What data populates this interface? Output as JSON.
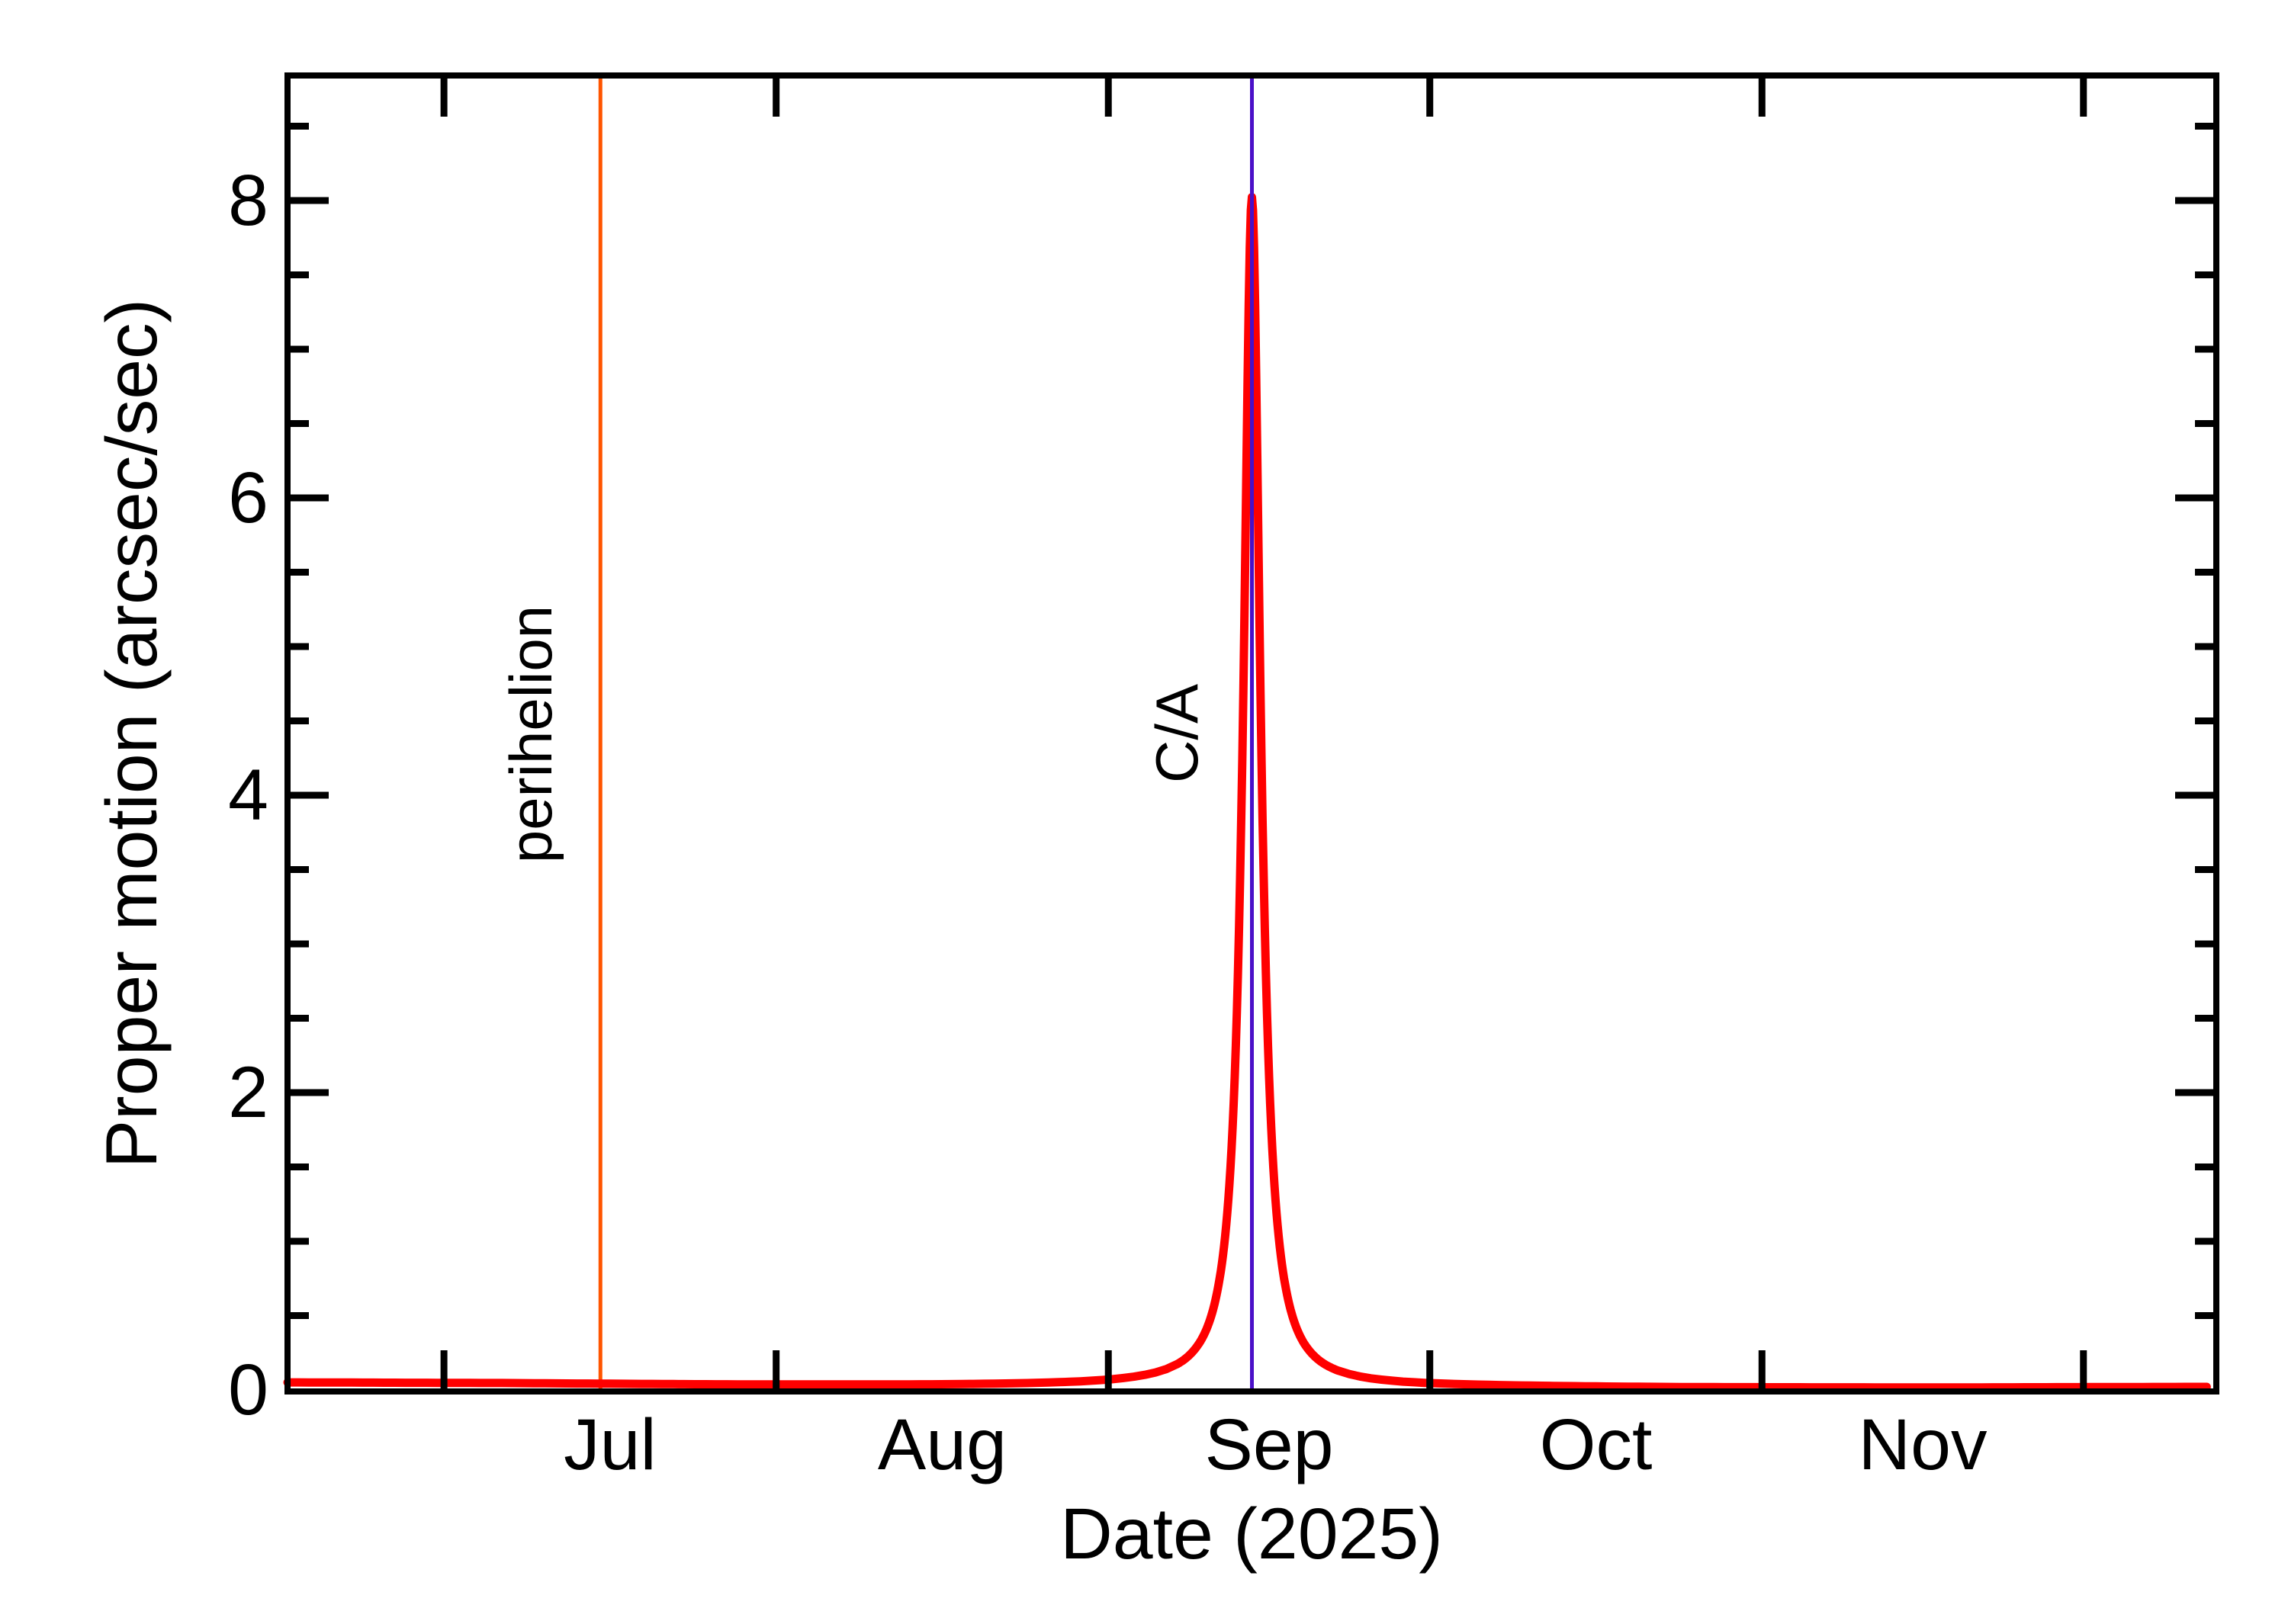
{
  "chart_data": {
    "type": "line",
    "title": "",
    "xlabel": "Date (2025)",
    "ylabel": "Proper motion (arcsec/sec)",
    "x_axis": {
      "year": "2025",
      "start_date": "2025-06-16",
      "end_date": "2025-12-13",
      "span_days": 180,
      "grid": false,
      "month_boundaary_note": "ticks drawn at month starts on top and bottom edges",
      "boundaries": [
        {
          "date": "Jul 1",
          "day": 14.6
        },
        {
          "date": "Aug 1",
          "day": 45.6
        },
        {
          "date": "Sep 1",
          "day": 76.6
        },
        {
          "date": "Oct 1",
          "day": 106.6
        },
        {
          "date": "Nov 1",
          "day": 137.6
        },
        {
          "date": "Dec 1",
          "day": 167.6
        }
      ],
      "labels": [
        {
          "text": "Jul",
          "day": 30.1
        },
        {
          "text": "Aug",
          "day": 61.1
        },
        {
          "text": "Sep",
          "day": 91.6
        },
        {
          "text": "Oct",
          "day": 122.1
        },
        {
          "text": "Nov",
          "day": 152.6
        }
      ]
    },
    "y_axis": {
      "min": 0,
      "max": 8.84,
      "major_ticks": [
        0,
        2,
        4,
        6,
        8
      ],
      "major_tick_labels": [
        "0",
        "2",
        "4",
        "6",
        "8"
      ],
      "minor_tick_step": 0.5,
      "unit": "arcsec/sec"
    },
    "series": [
      {
        "name": "proper-motion",
        "color": "#ff0000",
        "stroke_width": 11,
        "baseline_points": [
          [
            0,
            0.05
          ],
          [
            20,
            0.045
          ],
          [
            40,
            0.035
          ],
          [
            60,
            0.03
          ],
          [
            80,
            0.03
          ],
          [
            95,
            0.02
          ],
          [
            110,
            0.02
          ],
          [
            130,
            0.015
          ],
          [
            155,
            0.015
          ],
          [
            180,
            0.02
          ]
        ],
        "peak": {
          "center_day": 90.0,
          "amplitude": 8.0,
          "width_days": 0.95
        },
        "peak_value": 8.03,
        "peak_date": "2025-09-14"
      }
    ],
    "annotations": [
      {
        "id": "perihelion",
        "text": "perihelion",
        "day": 29.2,
        "date": "2025-07-15",
        "color": "#ff5500"
      },
      {
        "id": "close-approach",
        "text": "C/A",
        "day": 90.0,
        "date": "2025-09-14",
        "color": "#4b10c8"
      }
    ],
    "colors": {
      "curve": "#ff0000",
      "perihelion_line": "#ff5500",
      "close_approach_line": "#4b10c8",
      "frame": "#000000",
      "background": "#ffffff"
    }
  }
}
